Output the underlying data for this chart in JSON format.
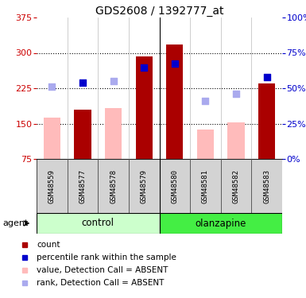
{
  "title": "GDS2608 / 1392777_at",
  "samples": [
    "GSM48559",
    "GSM48577",
    "GSM48578",
    "GSM48579",
    "GSM48580",
    "GSM48581",
    "GSM48582",
    "GSM48583"
  ],
  "group_labels": [
    "control",
    "olanzapine"
  ],
  "ylim_left": [
    75,
    375
  ],
  "ylim_right": [
    0,
    100
  ],
  "yticks_left": [
    75,
    150,
    225,
    300,
    375
  ],
  "yticks_right": [
    0,
    25,
    50,
    75,
    100
  ],
  "red_bars": [
    null,
    180,
    null,
    293,
    318,
    null,
    null,
    235
  ],
  "pink_bars": [
    163,
    null,
    183,
    null,
    null,
    138,
    152,
    null
  ],
  "blue_squares": [
    null,
    237,
    null,
    268,
    278,
    null,
    null,
    248
  ],
  "lightblue_squares": [
    228,
    null,
    240,
    null,
    null,
    198,
    213,
    null
  ],
  "bar_width": 0.55,
  "colors": {
    "red": "#aa0000",
    "pink": "#ffbbbb",
    "blue": "#0000cc",
    "lightblue": "#aaaaee",
    "control_bg": "#ccffcc",
    "olanzapine_bg": "#44ee44",
    "left_axis": "#cc0000",
    "right_axis": "#0000cc"
  },
  "agent_label": "agent",
  "base_value": 75,
  "legend_items": [
    {
      "color": "#aa0000",
      "label": "count"
    },
    {
      "color": "#0000cc",
      "label": "percentile rank within the sample"
    },
    {
      "color": "#ffbbbb",
      "label": "value, Detection Call = ABSENT"
    },
    {
      "color": "#aaaaee",
      "label": "rank, Detection Call = ABSENT"
    }
  ]
}
